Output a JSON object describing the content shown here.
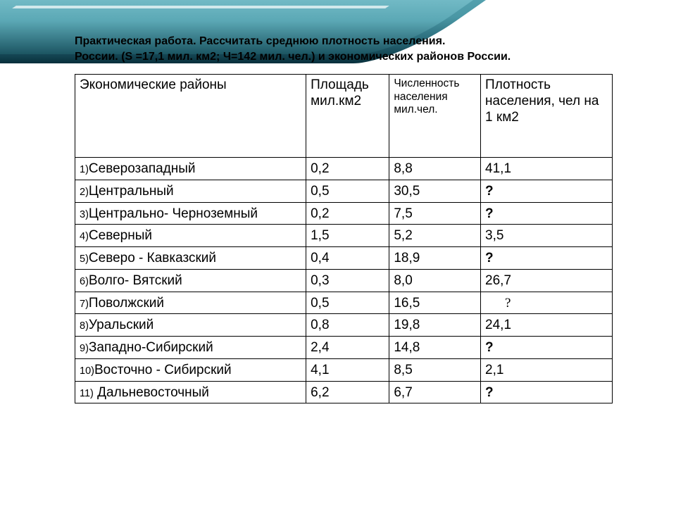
{
  "title_line1": "Практическая работа. Рассчитать среднюю плотность населения.",
  "title_line2": "России. (S =17,1 мил. км2; Ч=142 мил. чел.) и экономических районов России.",
  "headers": {
    "col1": "Экономические районы",
    "col2": "Площадь мил.км2",
    "col3": "Численность населения мил.чел.",
    "col4": "Плотность населения, чел на 1 км2"
  },
  "rows": [
    {
      "n": "1)",
      "name": "Северозападный",
      "area": "0,2",
      "pop": "8,8",
      "den": "41,1",
      "den_bold": false
    },
    {
      "n": "2)",
      "name": "Центральный",
      "area": "0,5",
      "pop": "30,5",
      "den": "?",
      "den_bold": true
    },
    {
      "n": "3)",
      "name": "Центрально- Черноземный",
      "area": "0,2",
      "pop": "7,5",
      "den": "?",
      "den_bold": true
    },
    {
      "n": "4)",
      "name": "Северный",
      "area": "1,5",
      "pop": "5,2",
      "den": "3,5",
      "den_bold": false
    },
    {
      "n": "5)",
      "name": "Северо - Кавказский",
      "area": "0,4",
      "pop": "18,9",
      "den": "?",
      "den_bold": true
    },
    {
      "n": "6)",
      "name": "Волго- Вятский",
      "area": "0,3",
      "pop": "8,0",
      "den": "26,7",
      "den_bold": false
    },
    {
      "n": "7)",
      "name": "Поволжский",
      "area": "0,5",
      "pop": "16,5",
      "den": "?",
      "den_bold": false,
      "den_serif": true
    },
    {
      "n": "8)",
      "name": "Уральский",
      "area": "0,8",
      "pop": "19,8",
      "den": "24,1",
      "den_bold": false
    },
    {
      "n": "9)",
      "name": "Западно-Сибирский",
      "area": "2,4",
      "pop": "14,8",
      "den": "?",
      "den_bold": true
    },
    {
      "n": "10)",
      "name": "Восточно - Сибирский",
      "area": "4,1",
      "pop": "8,5",
      "den": "2,1",
      "den_bold": false
    },
    {
      "n": "11)",
      "name": " Дальневосточный",
      "area": "6,2",
      "pop": "6,7",
      "den": "?",
      "den_bold": true
    }
  ],
  "style": {
    "background_color": "#ffffff",
    "border_color": "#000000",
    "title_fontsize": 16,
    "header_fontsize": 19,
    "header_small_fontsize": 15.5,
    "cell_fontsize": 19,
    "rownum_fontsize": 14.5,
    "col_widths_pct": [
      43,
      15.5,
      17,
      24.5
    ],
    "banner_colors": [
      "#7fc4cf",
      "#5ba8b5",
      "#4a97a5",
      "#2a6b7a",
      "#1c5562",
      "#08303c"
    ]
  }
}
